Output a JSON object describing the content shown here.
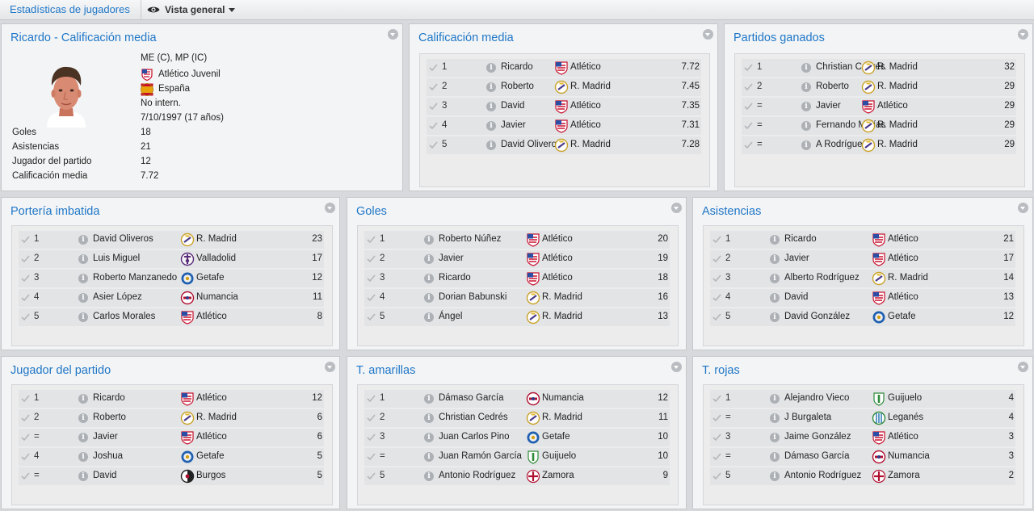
{
  "topbar": {
    "section": "Estadísticas de jugadores",
    "view": "Vista general",
    "view_icon": "eye-icon"
  },
  "colors": {
    "accent": "#1f77c8",
    "panel_bg": "#f3f4f5",
    "row_bg": "#e3e4e6"
  },
  "profile": {
    "title": "Ricardo - Calificación media",
    "position": "ME (C), MP (IC)",
    "club": "Atlético Juvenil",
    "nation": "España",
    "intl": "No intern.",
    "dob": "7/10/1997 (17 años)",
    "stats": [
      {
        "label": "Goles",
        "value": "18"
      },
      {
        "label": "Asistencias",
        "value": "21"
      },
      {
        "label": "Jugador del partido",
        "value": "12"
      },
      {
        "label": "Calificación media",
        "value": "7.72"
      }
    ]
  },
  "panels": [
    {
      "key": "calificacion",
      "title": "Calificación media",
      "rows": [
        {
          "rank": "1",
          "player": "Ricardo",
          "club": "Atlético",
          "crest": "atletico",
          "value": "7.72"
        },
        {
          "rank": "2",
          "player": "Roberto",
          "club": "R. Madrid",
          "crest": "madrid",
          "value": "7.45"
        },
        {
          "rank": "3",
          "player": "David",
          "club": "Atlético",
          "crest": "atletico",
          "value": "7.35"
        },
        {
          "rank": "4",
          "player": "Javier",
          "club": "Atlético",
          "crest": "atletico",
          "value": "7.31"
        },
        {
          "rank": "5",
          "player": "David Oliveros",
          "club": "R. Madrid",
          "crest": "madrid",
          "value": "7.28"
        }
      ]
    },
    {
      "key": "ganados",
      "title": "Partidos ganados",
      "rows": [
        {
          "rank": "1",
          "player": "Christian Cedrés",
          "club": "R. Madrid",
          "crest": "madrid",
          "value": "32"
        },
        {
          "rank": "2",
          "player": "Roberto",
          "club": "R. Madrid",
          "crest": "madrid",
          "value": "29"
        },
        {
          "rank": "=",
          "player": "Javier",
          "club": "Atlético",
          "crest": "atletico",
          "value": "29"
        },
        {
          "rank": "=",
          "player": "Fernando Mejías",
          "club": "R. Madrid",
          "crest": "madrid",
          "value": "29"
        },
        {
          "rank": "=",
          "player": "A Rodríguez",
          "club": "R. Madrid",
          "crest": "madrid",
          "value": "29"
        }
      ]
    },
    {
      "key": "imbatida",
      "title": "Portería imbatida",
      "rows": [
        {
          "rank": "1",
          "player": "David Oliveros",
          "club": "R. Madrid",
          "crest": "madrid",
          "value": "23"
        },
        {
          "rank": "2",
          "player": "Luis Miguel",
          "club": "Valladolid",
          "crest": "valladolid",
          "value": "17"
        },
        {
          "rank": "3",
          "player": "Roberto Manzanedo",
          "club": "Getafe",
          "crest": "getafe",
          "value": "12"
        },
        {
          "rank": "4",
          "player": "Asier López",
          "club": "Numancia",
          "crest": "numancia",
          "value": "11"
        },
        {
          "rank": "5",
          "player": "Carlos Morales",
          "club": "Atlético",
          "crest": "atletico",
          "value": "8"
        }
      ]
    },
    {
      "key": "goles",
      "title": "Goles",
      "rows": [
        {
          "rank": "1",
          "player": "Roberto Núñez",
          "club": "Atlético",
          "crest": "atletico",
          "value": "20"
        },
        {
          "rank": "2",
          "player": "Javier",
          "club": "Atlético",
          "crest": "atletico",
          "value": "19"
        },
        {
          "rank": "3",
          "player": "Ricardo",
          "club": "Atlético",
          "crest": "atletico",
          "value": "18"
        },
        {
          "rank": "4",
          "player": "Dorian Babunski",
          "club": "R. Madrid",
          "crest": "madrid",
          "value": "16"
        },
        {
          "rank": "5",
          "player": "Ángel",
          "club": "R. Madrid",
          "crest": "madrid",
          "value": "13"
        }
      ]
    },
    {
      "key": "asistencias",
      "title": "Asistencias",
      "rows": [
        {
          "rank": "1",
          "player": "Ricardo",
          "club": "Atlético",
          "crest": "atletico",
          "value": "21"
        },
        {
          "rank": "2",
          "player": "Javier",
          "club": "Atlético",
          "crest": "atletico",
          "value": "17"
        },
        {
          "rank": "3",
          "player": "Alberto Rodríguez",
          "club": "R. Madrid",
          "crest": "madrid",
          "value": "14"
        },
        {
          "rank": "4",
          "player": "David",
          "club": "Atlético",
          "crest": "atletico",
          "value": "13"
        },
        {
          "rank": "5",
          "player": "David González",
          "club": "Getafe",
          "crest": "getafe",
          "value": "12"
        }
      ]
    },
    {
      "key": "jdp",
      "title": "Jugador del partido",
      "rows": [
        {
          "rank": "1",
          "player": "Ricardo",
          "club": "Atlético",
          "crest": "atletico",
          "value": "12"
        },
        {
          "rank": "2",
          "player": "Roberto",
          "club": "R. Madrid",
          "crest": "madrid",
          "value": "6"
        },
        {
          "rank": "=",
          "player": "Javier",
          "club": "Atlético",
          "crest": "atletico",
          "value": "6"
        },
        {
          "rank": "4",
          "player": "Joshua",
          "club": "Getafe",
          "crest": "getafe",
          "value": "5"
        },
        {
          "rank": "=",
          "player": "David",
          "club": "Burgos",
          "crest": "burgos",
          "value": "5"
        }
      ]
    },
    {
      "key": "amarillas",
      "title": "T. amarillas",
      "rows": [
        {
          "rank": "1",
          "player": "Dámaso García",
          "club": "Numancia",
          "crest": "numancia",
          "value": "12"
        },
        {
          "rank": "2",
          "player": "Christian Cedrés",
          "club": "R. Madrid",
          "crest": "madrid",
          "value": "11"
        },
        {
          "rank": "3",
          "player": "Juan Carlos Pino",
          "club": "Getafe",
          "crest": "getafe",
          "value": "10"
        },
        {
          "rank": "=",
          "player": "Juan Ramón García",
          "club": "Guijuelo",
          "crest": "guijuelo",
          "value": "10"
        },
        {
          "rank": "5",
          "player": "Antonio Rodríguez",
          "club": "Zamora",
          "crest": "zamora",
          "value": "9"
        }
      ]
    },
    {
      "key": "rojas",
      "title": "T. rojas",
      "rows": [
        {
          "rank": "1",
          "player": "Alejandro Vieco",
          "club": "Guijuelo",
          "crest": "guijuelo",
          "value": "4"
        },
        {
          "rank": "=",
          "player": "J Burgaleta",
          "club": "Leganés",
          "crest": "leganes",
          "value": "4"
        },
        {
          "rank": "3",
          "player": "Jaime González",
          "club": "Atlético",
          "crest": "atletico",
          "value": "3"
        },
        {
          "rank": "=",
          "player": "Dámaso García",
          "club": "Numancia",
          "crest": "numancia",
          "value": "3"
        },
        {
          "rank": "5",
          "player": "Antonio Rodríguez",
          "club": "Zamora",
          "crest": "zamora",
          "value": "2"
        }
      ]
    }
  ]
}
